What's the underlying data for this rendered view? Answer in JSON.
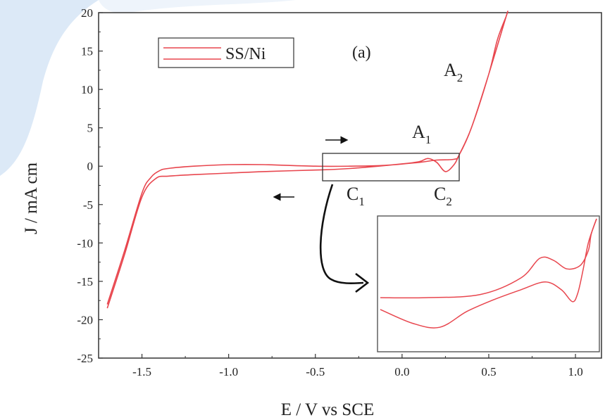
{
  "chart_data": {
    "type": "line",
    "title": "",
    "panel_label": "(a)",
    "xlabel": "E / V vs SCE",
    "ylabel": "J / mA cm",
    "xlim": [
      -1.75,
      1.15
    ],
    "ylim": [
      -25,
      20
    ],
    "xticks": [
      "-1.5",
      "-1.0",
      "-0.5",
      "0.0",
      "0.5",
      "1.0"
    ],
    "yticks": [
      "20",
      "15",
      "10",
      "5",
      "0",
      "-5",
      "-10",
      "-15",
      "-20",
      "-25"
    ],
    "grid": false,
    "legend": {
      "position": "top-left",
      "entries": [
        "SS/Ni"
      ]
    },
    "series": [
      {
        "name": "SS/Ni",
        "color": "#e8464e",
        "x": [
          -1.7,
          -1.6,
          -1.5,
          -1.45,
          -1.4,
          -1.35,
          -1.2,
          -1.0,
          -0.8,
          -0.5,
          -0.3,
          -0.1,
          0.1,
          0.2,
          0.3,
          0.33,
          0.4,
          0.5,
          0.55,
          0.6,
          0.6,
          0.5,
          0.4,
          0.33,
          0.3,
          0.25,
          0.2,
          0.15,
          0.1,
          0.0,
          -0.3,
          -0.5,
          -0.8,
          -1.0,
          -1.2,
          -1.35,
          -1.42,
          -1.5,
          -1.6,
          -1.7
        ],
        "y": [
          -18,
          -11,
          -3.5,
          -1.5,
          -0.6,
          -0.3,
          0.0,
          0.2,
          0.2,
          0.0,
          0.0,
          0.1,
          0.5,
          0.8,
          0.9,
          1.5,
          5.0,
          12.0,
          16.5,
          19.5,
          19.5,
          12.0,
          5.0,
          1.5,
          0.2,
          -0.7,
          0.5,
          1.0,
          0.6,
          0.3,
          -0.3,
          -0.5,
          -0.7,
          -0.9,
          -1.1,
          -1.3,
          -1.6,
          -4.0,
          -11.5,
          -18.5
        ]
      }
    ],
    "annotations": [
      {
        "label": "A",
        "sub": "1"
      },
      {
        "label": "A",
        "sub": "2"
      },
      {
        "label": "C",
        "sub": "1"
      },
      {
        "label": "C",
        "sub": "2"
      }
    ],
    "inset": {
      "x_range": [
        -0.47,
        0.33
      ],
      "y_range": [
        -1.8,
        1.5
      ],
      "forward_x": [
        -0.47,
        -0.3,
        -0.1,
        0.05,
        0.12,
        0.17,
        0.22,
        0.27,
        0.3,
        0.31,
        0.33
      ],
      "forward_y": [
        -0.5,
        -0.5,
        -0.42,
        0.0,
        0.5,
        0.45,
        0.23,
        0.32,
        0.7,
        1.1,
        1.5
      ],
      "reverse_x": [
        0.33,
        0.3,
        0.28,
        0.26,
        0.24,
        0.2,
        0.14,
        0.05,
        -0.05,
        -0.15,
        -0.25,
        -0.35,
        -0.47
      ],
      "reverse_y": [
        1.5,
        0.9,
        0.2,
        -0.4,
        -0.6,
        -0.3,
        -0.1,
        -0.3,
        -0.55,
        -0.85,
        -1.25,
        -1.15,
        -0.8
      ]
    }
  }
}
